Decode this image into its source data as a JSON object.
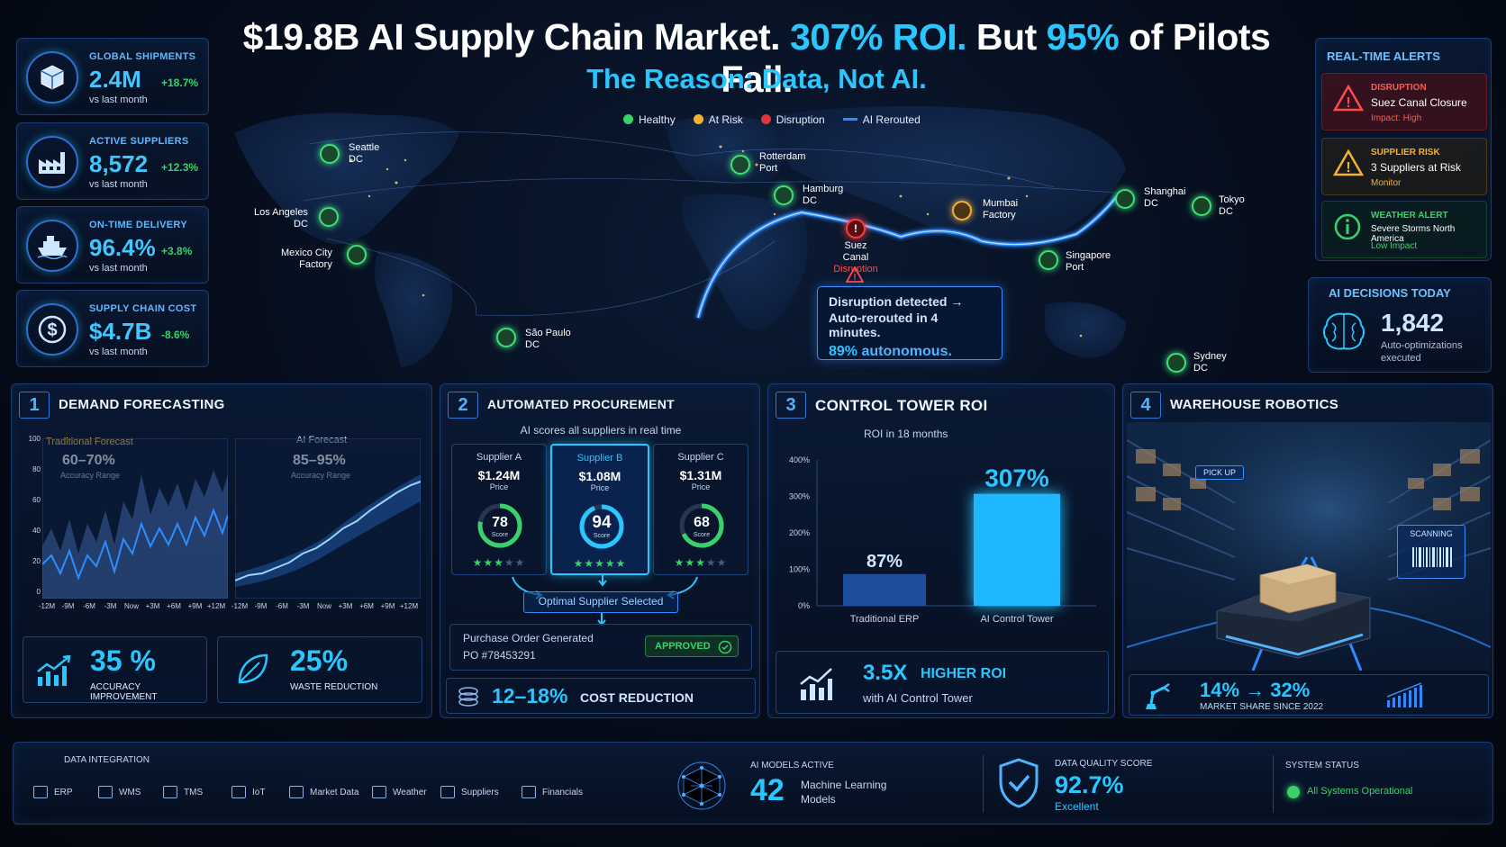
{
  "header": {
    "title_part1": "$19.8B AI Supply Chain Market.",
    "title_roi": "307% ROI.",
    "title_part2": "But",
    "title_pct": "95%",
    "title_part3": "of Pilots Fail.",
    "subtitle": "The Reason: Data, Not AI."
  },
  "kpis": [
    {
      "label": "GLOBAL SHIPMENTS",
      "value": "2.4M",
      "change": "+18.7%",
      "sub": "vs last month",
      "icon": "box-icon"
    },
    {
      "label": "ACTIVE SUPPLIERS",
      "value": "8,572",
      "change": "+12.3%",
      "sub": "vs last month",
      "icon": "factory-icon"
    },
    {
      "label": "ON-TIME DELIVERY",
      "value": "96.4%",
      "change": "+3.8%",
      "sub": "vs last month",
      "icon": "ship-icon"
    },
    {
      "label": "SUPPLY CHAIN COST",
      "value": "$4.7B",
      "change": "-8.6%",
      "sub": "vs last month",
      "icon": "dollar-icon"
    }
  ],
  "legend": [
    {
      "label": "Healthy",
      "color": "#39d26a"
    },
    {
      "label": "At Risk",
      "color": "#f2b233"
    },
    {
      "label": "Disruption",
      "color": "#e0353b"
    },
    {
      "label": "AI Rerouted",
      "color": "#2f8cff"
    }
  ],
  "map": {
    "cities": {
      "seattle": {
        "name": "Seattle",
        "type": "DC"
      },
      "los_angeles": {
        "name": "Los Angeles",
        "type": "DC"
      },
      "mexico_city": {
        "name": "Mexico City",
        "type": "Factory"
      },
      "sao_paulo": {
        "name": "São Paulo",
        "type": "DC"
      },
      "rotterdam": {
        "name": "Rotterdam",
        "type": "Port"
      },
      "hamburg": {
        "name": "Hamburg",
        "type": "DC"
      },
      "suez": {
        "name": "Suez Canal",
        "type": "Disruption"
      },
      "mumbai": {
        "name": "Mumbai",
        "type": "Factory"
      },
      "singapore": {
        "name": "Singapore",
        "type": "Port"
      },
      "shanghai": {
        "name": "Shanghai",
        "type": "DC"
      },
      "tokyo": {
        "name": "Tokyo",
        "type": "DC"
      },
      "sydney": {
        "name": "Sydney",
        "type": "DC"
      }
    },
    "callout": {
      "line1": "Disruption detected →",
      "line2": "Auto-rerouted in 4 minutes.",
      "pct": "89%",
      "pct_label": "autonomous."
    }
  },
  "alerts": {
    "title": "REAL-TIME ALERTS",
    "items": [
      {
        "type": "DISRUPTION",
        "desc": "Suez Canal Closure",
        "impact": "Impact: High",
        "color": "#ff4a4a",
        "icon": "warning-icon"
      },
      {
        "type": "SUPPLIER RISK",
        "desc": "3 Suppliers at Risk",
        "impact": "Monitor",
        "color": "#f2b233",
        "icon": "warning-icon"
      },
      {
        "type": "WEATHER ALERT",
        "desc": "Severe Storms North America",
        "impact": "Low Impact",
        "color": "#39d26a",
        "icon": "info-icon"
      }
    ]
  },
  "ai_decisions": {
    "title": "AI DECISIONS TODAY",
    "value": "1,842",
    "label": "Auto-optimizations executed"
  },
  "demand": {
    "num": "1",
    "title": "DEMAND FORECASTING",
    "left_title": "Traditional Forecast",
    "left_range": "60–70%",
    "left_range_label": "Accuracy Range",
    "right_title": "AI Forecast",
    "right_range": "85–95%",
    "right_range_label": "Accuracy Range",
    "y_ticks": [
      "100",
      "80",
      "60",
      "40",
      "20",
      "0"
    ],
    "x_ticks": [
      "-12M",
      "-9M",
      "-6M",
      "-3M",
      "Now",
      "+3M",
      "+6M",
      "+9M",
      "+12M"
    ],
    "stat1_value": "35 %",
    "stat1_label": "ACCURACY IMPROVEMENT",
    "stat2_value": "25%",
    "stat2_label": "WASTE REDUCTION"
  },
  "procurement": {
    "num": "2",
    "title": "AUTOMATED PROCUREMENT",
    "subtitle": "AI scores all suppliers in real time",
    "suppliers": [
      {
        "name": "Supplier A",
        "price": "$1.24M",
        "price_label": "Price",
        "score": 78,
        "score_label": "Score",
        "stars": 3
      },
      {
        "name": "Supplier B",
        "price": "$1.08M",
        "price_label": "Price",
        "score": 94,
        "score_label": "Score",
        "stars": 5
      },
      {
        "name": "Supplier C",
        "price": "$1.31M",
        "price_label": "Price",
        "score": 68,
        "score_label": "Score",
        "stars": 3
      }
    ],
    "selected_label": "Optimal Supplier Selected",
    "po_title": "Purchase Order Generated",
    "po_number": "PO #78453291",
    "approved": "APPROVED",
    "cost_value": "12–18%",
    "cost_label": "COST REDUCTION"
  },
  "control_tower": {
    "num": "3",
    "title": "CONTROL TOWER ROI",
    "subtitle": "ROI in 18 months",
    "y_ticks": [
      "400%",
      "300%",
      "200%",
      "100%",
      "0%"
    ],
    "roi_value": "3.5X",
    "roi_label": "HIGHER ROI",
    "roi_sub": "with AI Control Tower"
  },
  "chart_data": {
    "type": "bar",
    "categories": [
      "Traditional ERP",
      "AI Control Tower"
    ],
    "values": [
      87,
      307
    ],
    "data_labels": [
      "87%",
      "307%"
    ],
    "title": "ROI in 18 months",
    "ylim": [
      0,
      400
    ],
    "grid": false
  },
  "robotics": {
    "num": "4",
    "title": "WAREHOUSE ROBOTICS",
    "pickup": "PICK UP",
    "scanning": "SCANNING",
    "share": "14% → 32%",
    "share_label": "MARKET SHARE SINCE 2022"
  },
  "bottom": {
    "integration_title": "DATA INTEGRATION",
    "integrations": [
      "ERP",
      "WMS",
      "TMS",
      "IoT",
      "Market Data",
      "Weather",
      "Suppliers",
      "Financials"
    ],
    "models_title": "AI MODELS ACTIVE",
    "models_value": "42",
    "models_label1": "Machine Learning",
    "models_label2": "Models",
    "quality_title": "DATA QUALITY SCORE",
    "quality_value": "92.7%",
    "quality_label": "Excellent",
    "status_title": "SYSTEM STATUS",
    "status_label": "All Systems Operational"
  }
}
